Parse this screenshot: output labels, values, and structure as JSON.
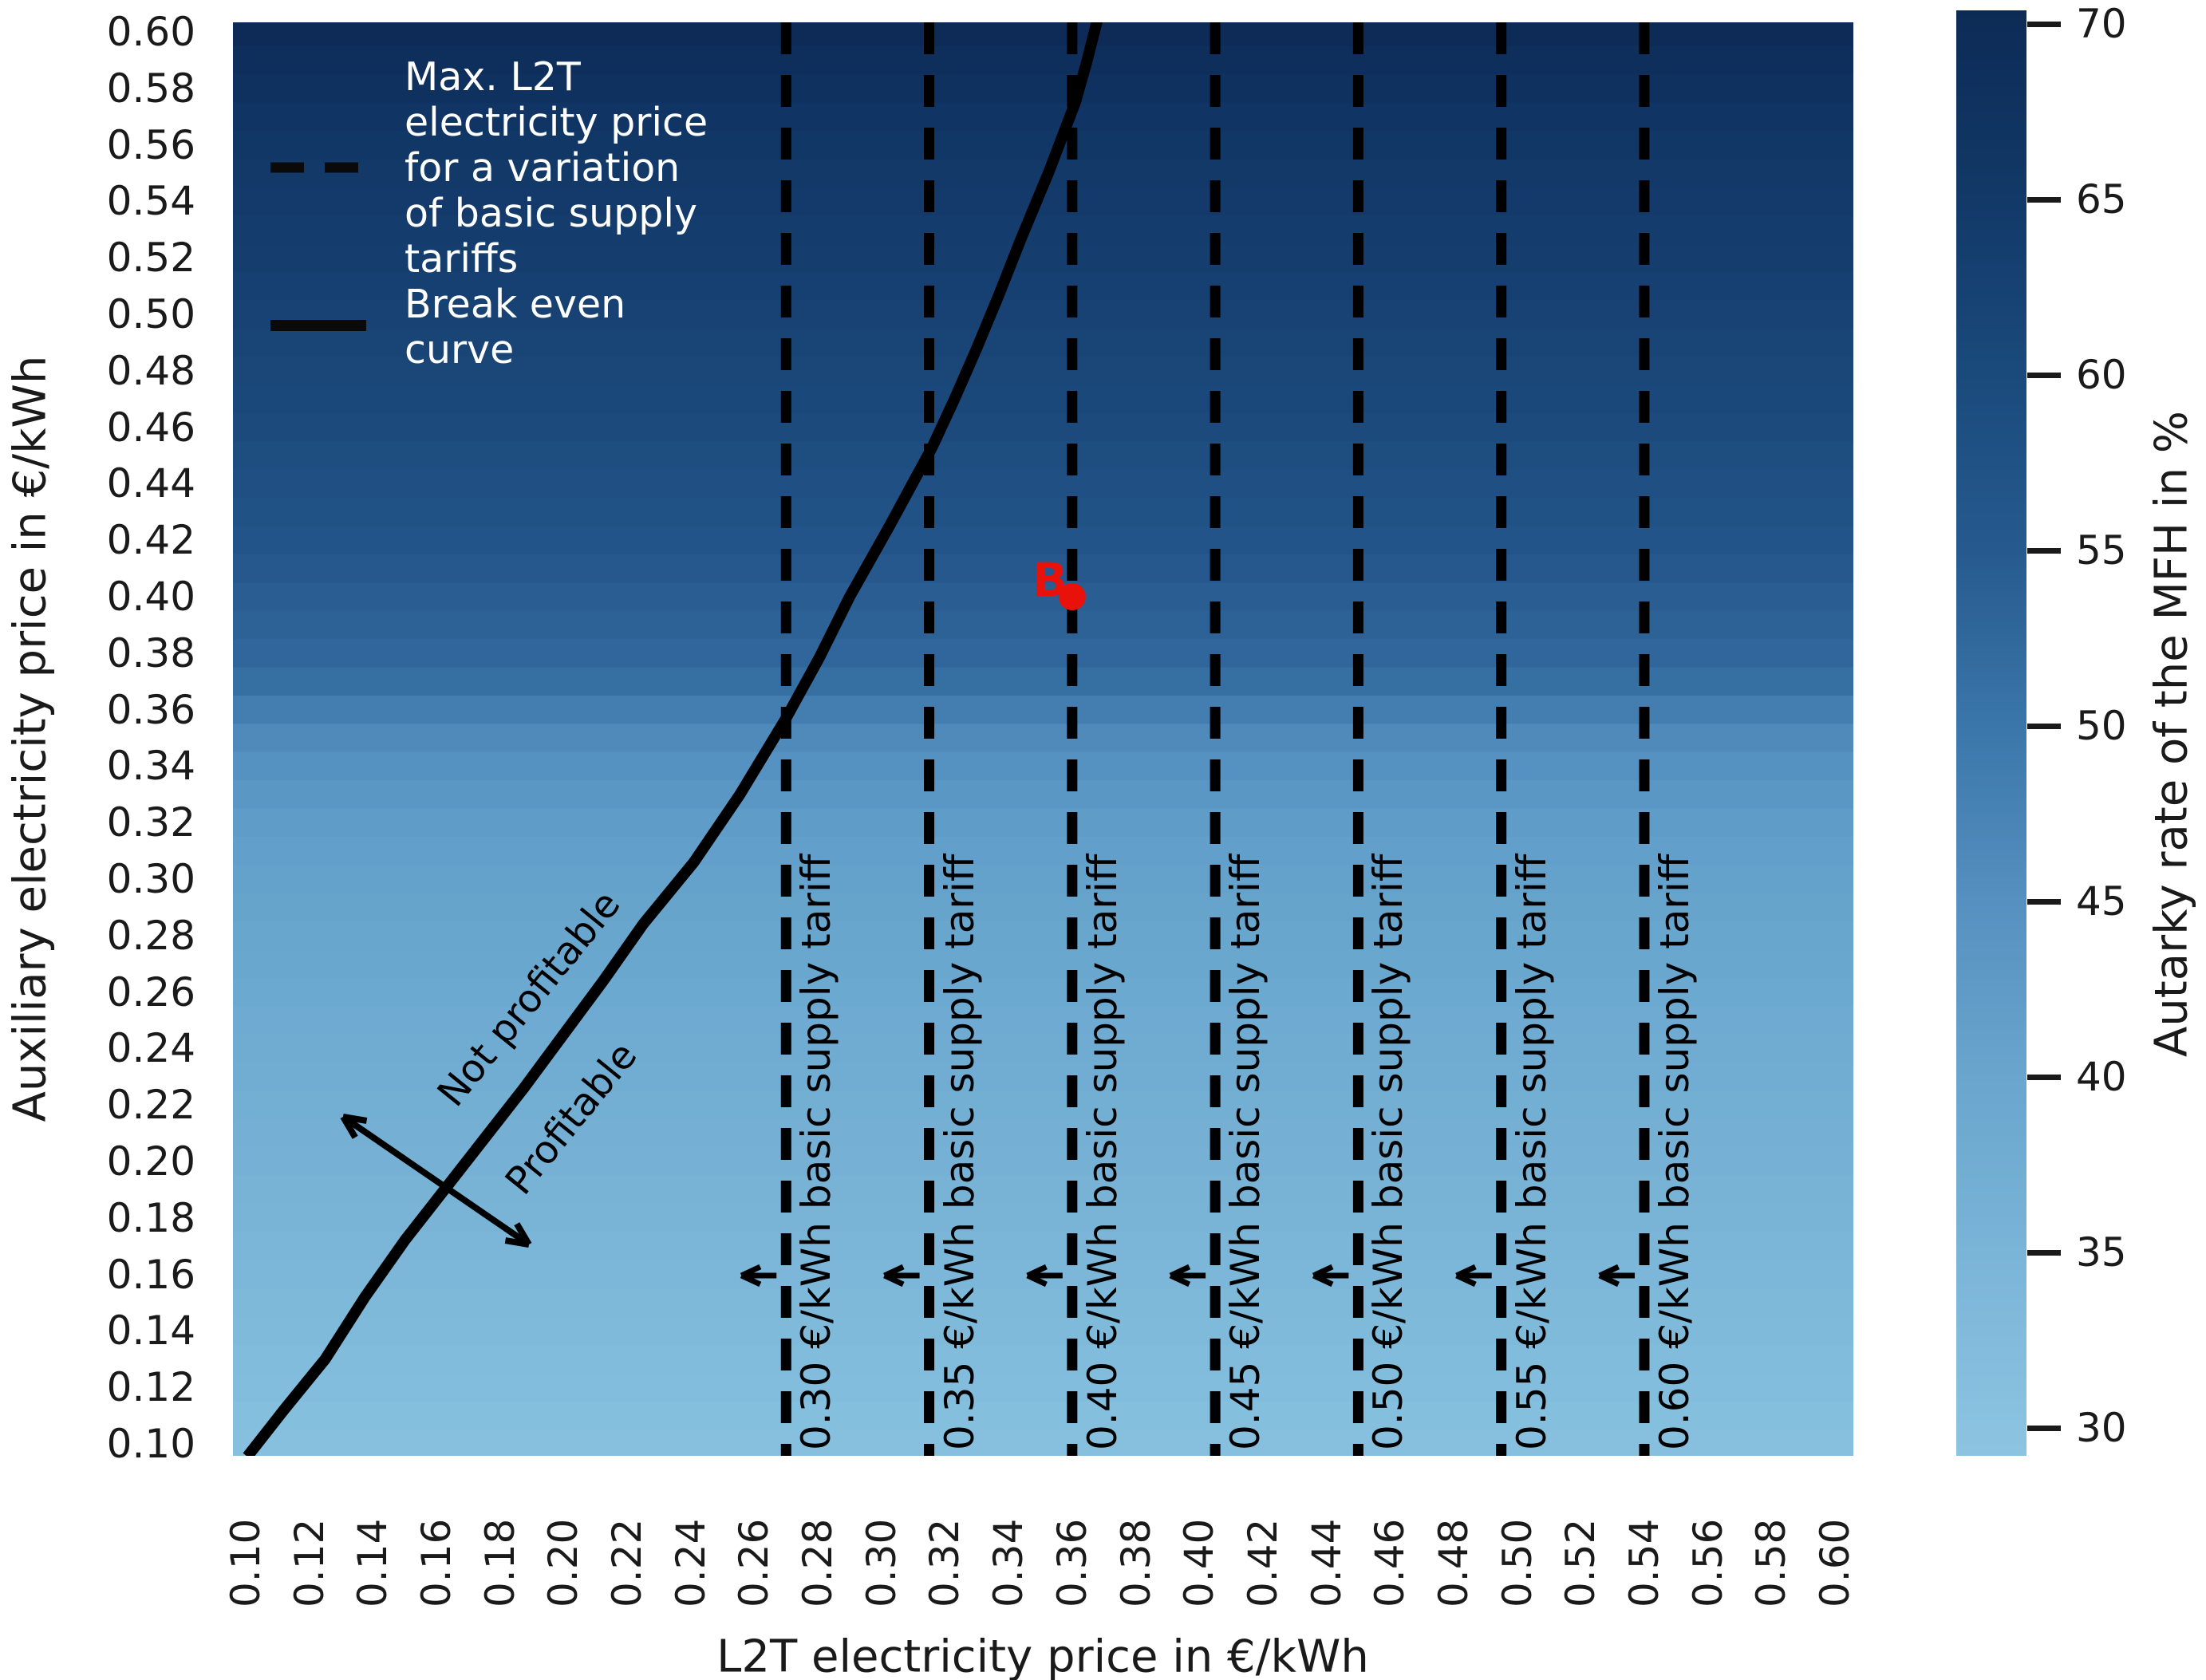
{
  "figure": {
    "background": "#ffffff"
  },
  "axes": {
    "xlabel": "L2T electricity price in €/kWh",
    "ylabel": "Auxiliary electricity price in €/kWh",
    "x_ticks": [
      "0.10",
      "0.12",
      "0.14",
      "0.16",
      "0.18",
      "0.20",
      "0.22",
      "0.24",
      "0.26",
      "0.28",
      "0.30",
      "0.32",
      "0.34",
      "0.36",
      "0.38",
      "0.40",
      "0.42",
      "0.44",
      "0.46",
      "0.48",
      "0.50",
      "0.52",
      "0.54",
      "0.56",
      "0.58",
      "0.60"
    ],
    "y_ticks": [
      "0.60",
      "0.58",
      "0.56",
      "0.54",
      "0.52",
      "0.50",
      "0.48",
      "0.46",
      "0.44",
      "0.42",
      "0.40",
      "0.38",
      "0.36",
      "0.34",
      "0.32",
      "0.30",
      "0.28",
      "0.26",
      "0.24",
      "0.22",
      "0.20",
      "0.18",
      "0.16",
      "0.14",
      "0.12",
      "0.10"
    ]
  },
  "legend": {
    "item1_label": "Max. L2T\nelectricity price\nfor a variation\nof basic supply\ntariffs",
    "item2_label": "Break even\ncurve",
    "text_color": "#ffffff",
    "marker_color": "#0a0a0a"
  },
  "colorbar": {
    "label": "Autarky rate of the MFH in %",
    "ticks": [
      "70",
      "65",
      "60",
      "55",
      "50",
      "45",
      "40",
      "35",
      "30"
    ],
    "tick_colors": [
      "#0d2c57",
      "#123968",
      "#1a4a7c",
      "#265a8e",
      "#3b76aa",
      "#5690c0",
      "#69a5cd",
      "#7ab4d7",
      "#8ac2e0"
    ]
  },
  "annotations": {
    "not_profitable": "Not profitable",
    "profitable": "Profitable",
    "point_label": "B",
    "point_color": "#e8120b"
  },
  "chart_data": {
    "type": "heatmap",
    "xlabel": "L2T electricity price in €/kWh",
    "ylabel": "Auxiliary electricity price in €/kWh",
    "xlim": [
      0.095,
      0.605
    ],
    "ylim": [
      0.095,
      0.605
    ],
    "grid": false,
    "legend_position": "upper left",
    "colorbar_label": "Autarky rate of the MFH in %",
    "colorbar_range": [
      30,
      70
    ],
    "heatmap_note": "Autarky rate varies only with auxiliary electricity price (horizontal bands, 0.01 cell rows)",
    "heatmap_profile": {
      "aux_price": [
        0.1,
        0.14,
        0.18,
        0.22,
        0.26,
        0.3,
        0.32,
        0.34,
        0.35,
        0.36,
        0.37,
        0.38,
        0.4,
        0.42,
        0.44,
        0.46,
        0.48,
        0.5,
        0.52,
        0.54,
        0.56,
        0.58,
        0.6
      ],
      "autarky_percent": [
        30,
        31,
        32.5,
        34,
        36,
        38,
        39.5,
        41,
        42,
        46,
        49,
        52,
        55,
        57.5,
        59,
        61,
        62.5,
        64,
        65.5,
        66.5,
        68,
        69,
        70
      ]
    },
    "heatmap_stops": [
      {
        "v": 0.605,
        "color": "#0c2a54"
      },
      {
        "v": 0.58,
        "color": "#0f3160"
      },
      {
        "v": 0.56,
        "color": "#113766"
      },
      {
        "v": 0.54,
        "color": "#133a6a"
      },
      {
        "v": 0.52,
        "color": "#153e6f"
      },
      {
        "v": 0.5,
        "color": "#174273"
      },
      {
        "v": 0.48,
        "color": "#1a4678"
      },
      {
        "v": 0.46,
        "color": "#1c4a7d"
      },
      {
        "v": 0.44,
        "color": "#1f4f83"
      },
      {
        "v": 0.42,
        "color": "#235489"
      },
      {
        "v": 0.4,
        "color": "#2a5d92"
      },
      {
        "v": 0.38,
        "color": "#30669b"
      },
      {
        "v": 0.37,
        "color": "#3670a3"
      },
      {
        "v": 0.36,
        "color": "#447eb1"
      },
      {
        "v": 0.35,
        "color": "#4f8abb"
      },
      {
        "v": 0.34,
        "color": "#5592c1"
      },
      {
        "v": 0.32,
        "color": "#5f9cc8"
      },
      {
        "v": 0.3,
        "color": "#64a2cb"
      },
      {
        "v": 0.26,
        "color": "#6ca9d0"
      },
      {
        "v": 0.22,
        "color": "#73aed3"
      },
      {
        "v": 0.18,
        "color": "#79b4d7"
      },
      {
        "v": 0.14,
        "color": "#7fbadb"
      },
      {
        "v": 0.1,
        "color": "#86c0de"
      },
      {
        "v": 0.095,
        "color": "#88c1df"
      }
    ],
    "break_even_curve": {
      "x": [
        0.1005,
        0.112,
        0.125,
        0.1375,
        0.15,
        0.1625,
        0.175,
        0.1875,
        0.2,
        0.2125,
        0.225,
        0.241,
        0.2555,
        0.27,
        0.2805,
        0.29,
        0.3025,
        0.316,
        0.323,
        0.33,
        0.337,
        0.344,
        0.3525,
        0.361,
        0.3645,
        0.368
      ],
      "y": [
        0.0955,
        0.112,
        0.13,
        0.152,
        0.172,
        0.19,
        0.208,
        0.226,
        0.245,
        0.264,
        0.284,
        0.306,
        0.33,
        0.357,
        0.3785,
        0.4,
        0.425,
        0.453,
        0.47,
        0.488,
        0.507,
        0.527,
        0.55,
        0.575,
        0.589,
        0.6045
      ]
    },
    "tariff_lines": [
      {
        "tariff": 0.3,
        "x": 0.27,
        "label": "0.30 €/kWh basic supply tariff"
      },
      {
        "tariff": 0.35,
        "x": 0.315,
        "label": "0.35 €/kWh basic supply tariff"
      },
      {
        "tariff": 0.4,
        "x": 0.36,
        "label": "0.40 €/kWh basic supply tariff"
      },
      {
        "tariff": 0.45,
        "x": 0.405,
        "label": "0.45 €/kWh basic supply tariff"
      },
      {
        "tariff": 0.5,
        "x": 0.45,
        "label": "0.50 €/kWh basic supply tariff"
      },
      {
        "tariff": 0.55,
        "x": 0.495,
        "label": "0.55 €/kWh basic supply tariff"
      },
      {
        "tariff": 0.6,
        "x": 0.54,
        "label": "0.60 €/kWh basic supply tariff"
      }
    ],
    "point_B": {
      "x": 0.36,
      "y": 0.4,
      "label": "B"
    }
  }
}
